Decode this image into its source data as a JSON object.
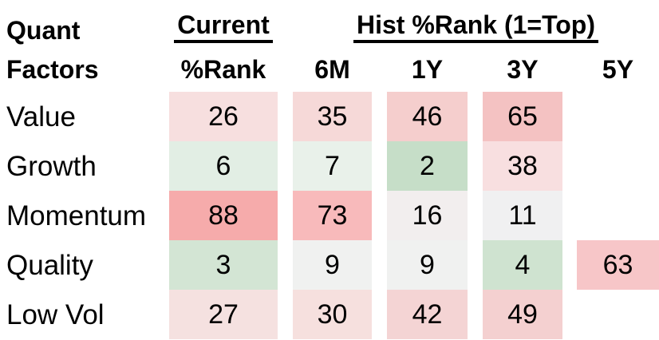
{
  "header": {
    "row_group_title_line1": "Quant",
    "row_group_title_line2": "Factors",
    "current_group": "Current",
    "current_sub": "%Rank",
    "hist_group": "Hist %Rank (1=Top)",
    "hist_cols": [
      "6M",
      "1Y",
      "3Y",
      "5Y"
    ]
  },
  "colors": {
    "text": "#000000",
    "background": "#ffffff",
    "good_green_strong": "#c6dec8",
    "bad_red_strong": "#f6abab"
  },
  "rows": [
    {
      "label": "Value",
      "cells": [
        {
          "v": "26",
          "bg": "#f7dfdf"
        },
        {
          "v": "35",
          "bg": "#f6d9d8"
        },
        {
          "v": "46",
          "bg": "#f5cecd"
        },
        {
          "v": "65",
          "bg": "#f4c2c2"
        },
        {
          "v": "",
          "bg": ""
        }
      ]
    },
    {
      "label": "Growth",
      "cells": [
        {
          "v": "6",
          "bg": "#e2eee4"
        },
        {
          "v": "7",
          "bg": "#e9f1ea"
        },
        {
          "v": "2",
          "bg": "#c6dec8"
        },
        {
          "v": "38",
          "bg": "#f8dfe0"
        },
        {
          "v": "",
          "bg": ""
        }
      ]
    },
    {
      "label": "Momentum",
      "cells": [
        {
          "v": "88",
          "bg": "#f6abab"
        },
        {
          "v": "73",
          "bg": "#f8babb"
        },
        {
          "v": "16",
          "bg": "#f2eeee"
        },
        {
          "v": "11",
          "bg": "#f0f0f1"
        },
        {
          "v": "",
          "bg": ""
        }
      ]
    },
    {
      "label": "Quality",
      "cells": [
        {
          "v": "3",
          "bg": "#d3e5d4"
        },
        {
          "v": "9",
          "bg": "#f0f1f0"
        },
        {
          "v": "9",
          "bg": "#f0f1f0"
        },
        {
          "v": "4",
          "bg": "#cfe3d0"
        },
        {
          "v": "63",
          "bg": "#f7c6c8"
        }
      ]
    },
    {
      "label": "Low Vol",
      "cells": [
        {
          "v": "27",
          "bg": "#f5e1e0"
        },
        {
          "v": "30",
          "bg": "#f6e0de"
        },
        {
          "v": "42",
          "bg": "#f4d4d4"
        },
        {
          "v": "49",
          "bg": "#f4d0d0"
        },
        {
          "v": "",
          "bg": ""
        }
      ]
    }
  ],
  "chart_data": {
    "type": "heatmap",
    "title": "Quant Factors",
    "column_group_headers": [
      "Current",
      "Hist %Rank (1=Top)"
    ],
    "columns": [
      "Current %Rank",
      "6M",
      "1Y",
      "3Y",
      "5Y"
    ],
    "rows": [
      "Value",
      "Growth",
      "Momentum",
      "Quality",
      "Low Vol"
    ],
    "values": [
      [
        26,
        35,
        46,
        65,
        null
      ],
      [
        6,
        7,
        2,
        38,
        null
      ],
      [
        88,
        73,
        16,
        11,
        null
      ],
      [
        3,
        9,
        9,
        4,
        63
      ],
      [
        27,
        30,
        42,
        49,
        null
      ]
    ],
    "scale_note": "1 = top percentile; low ranks shaded green, high ranks shaded red",
    "legend_position": "none",
    "grid": false
  }
}
